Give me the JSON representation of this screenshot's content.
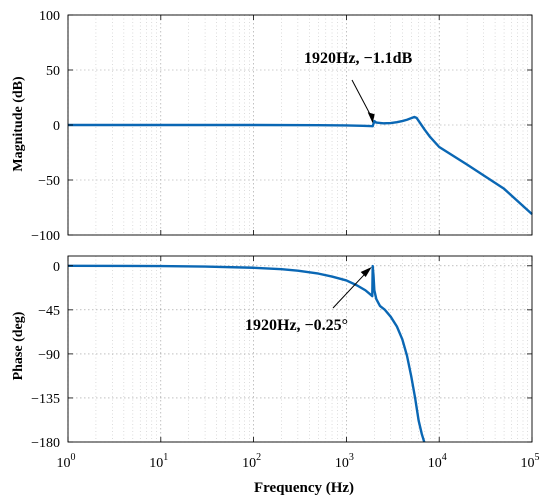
{
  "chart_data": [
    {
      "type": "line",
      "ylabel": "Magnitude (dB)",
      "xscale": "log",
      "xlim": [
        1,
        100000
      ],
      "ylim": [
        -100,
        100
      ],
      "yticks": [
        100,
        50,
        0,
        -50,
        -100
      ],
      "grid": true,
      "series": [
        {
          "x": [
            1,
            10,
            100,
            500,
            1000,
            1500,
            1800,
            1920,
            2000,
            2100,
            2500,
            3000,
            3500,
            4000,
            4500,
            5000,
            5400,
            5700,
            6000,
            6500,
            7000,
            8000,
            10000,
            20000,
            50000,
            100000
          ],
          "values": [
            0,
            0,
            0,
            -0.2,
            -0.4,
            -0.7,
            -1.0,
            -1.1,
            3.5,
            2.2,
            1.5,
            1.8,
            2.6,
            3.6,
            4.8,
            6.2,
            7.3,
            6.5,
            3.8,
            -0.5,
            -4.5,
            -11,
            -20,
            -36,
            -58,
            -81
          ]
        }
      ],
      "annotation": {
        "text": "1920Hz, −1.1dB",
        "x": 1920,
        "y": -1.1
      }
    },
    {
      "type": "line",
      "xlabel": "Frequency  (Hz)",
      "ylabel": "Phase (deg)",
      "xscale": "log",
      "xlim": [
        1,
        100000
      ],
      "ylim": [
        -180,
        10
      ],
      "yticks": [
        0,
        -45,
        -90,
        -135,
        -180
      ],
      "xticks": [
        "10",
        "10",
        "10",
        "10",
        "10",
        "10"
      ],
      "xtick_exponents": [
        "0",
        "1",
        "2",
        "3",
        "4",
        "5"
      ],
      "grid": true,
      "series": [
        {
          "x": [
            1,
            10,
            30,
            100,
            200,
            300,
            500,
            700,
            1000,
            1300,
            1600,
            1800,
            1900,
            1920,
            1960,
            2000,
            2100,
            2300,
            2600,
            3000,
            3500,
            4000,
            4500,
            5000,
            5500,
            6000,
            6500,
            6900
          ],
          "values": [
            0,
            -0.3,
            -0.8,
            -2,
            -3.5,
            -5,
            -8,
            -11,
            -15,
            -20,
            -25,
            -29,
            -31,
            -0.25,
            -10,
            -25,
            -34,
            -41,
            -45,
            -52,
            -62,
            -75,
            -92,
            -113,
            -135,
            -158,
            -172,
            -180
          ]
        }
      ],
      "annotation": {
        "text": "1920Hz, −0.25°",
        "x": 1920,
        "y": -0.25
      }
    }
  ]
}
